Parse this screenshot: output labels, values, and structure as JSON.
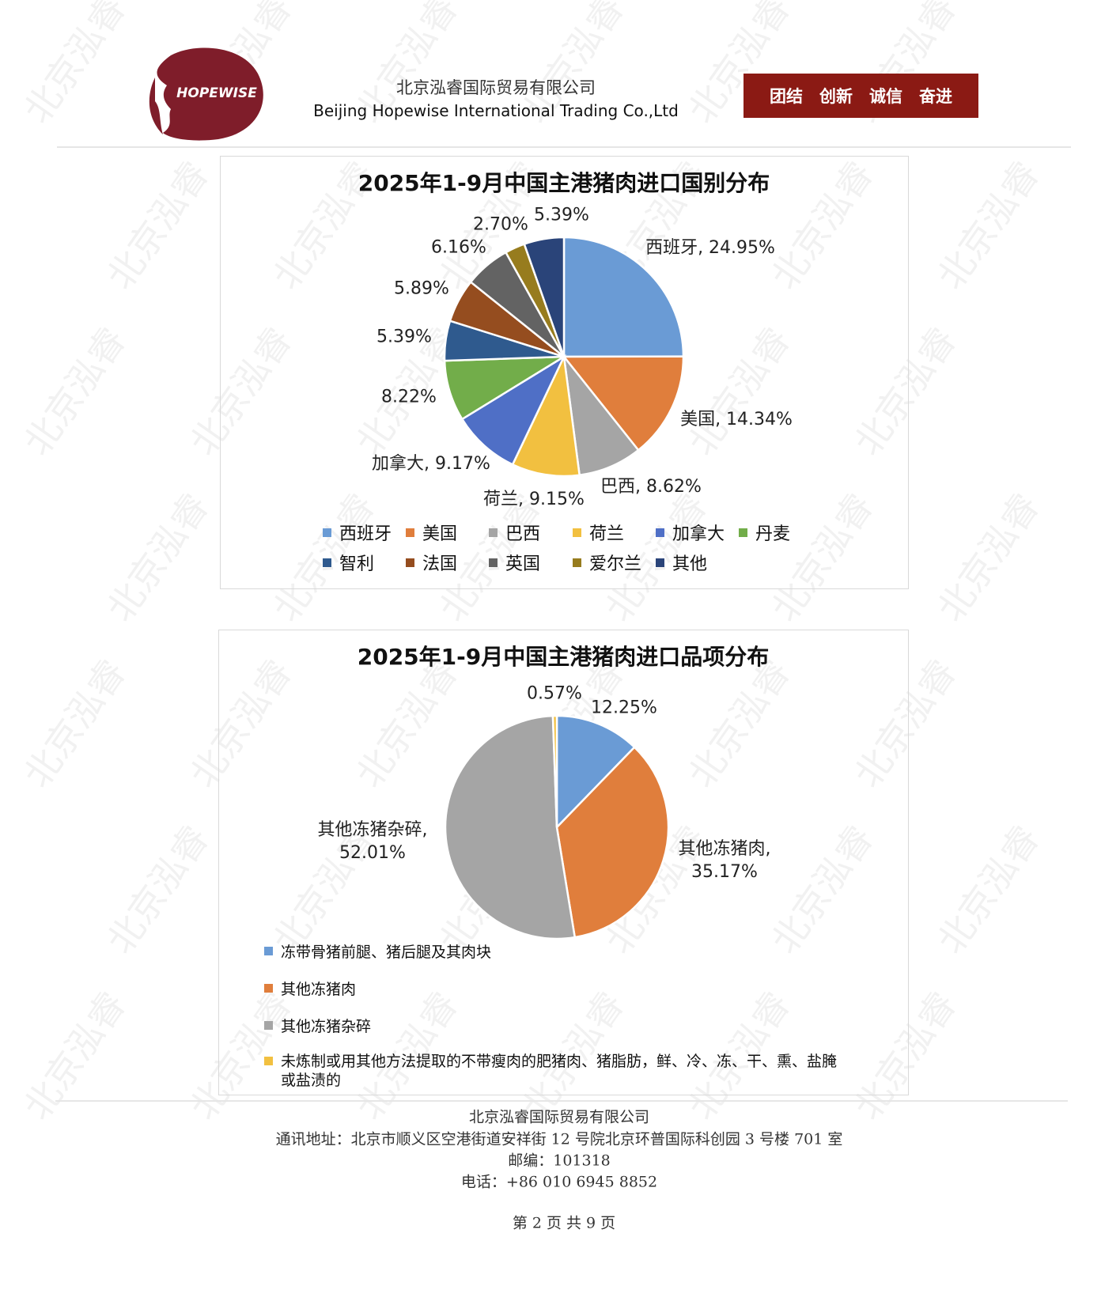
{
  "header": {
    "logo_text": "HOPEWISE",
    "company_cn": "北京泓睿国际贸易有限公司",
    "company_en": "Beijing Hopewise International Trading Co.,Ltd",
    "slogan": "团结　创新　诚信　奋进",
    "brand_color": "#8B1A14",
    "logo_color": "#7F1D2A"
  },
  "watermark": "北京泓睿",
  "chart_data": [
    {
      "type": "pie",
      "title": "2025年1-9月中国主港猪肉进口国别分布",
      "legend_position": "bottom",
      "slices": [
        {
          "name": "西班牙",
          "value": 24.95,
          "label": "西班牙, 24.95%",
          "color": "#6A9BD5"
        },
        {
          "name": "美国",
          "value": 14.34,
          "label": "美国, 14.34%",
          "color": "#E07E3C"
        },
        {
          "name": "巴西",
          "value": 8.62,
          "label": "巴西, 8.62%",
          "color": "#A5A5A5"
        },
        {
          "name": "荷兰",
          "value": 9.15,
          "label": "荷兰, 9.15%",
          "color": "#F2C040"
        },
        {
          "name": "加拿大",
          "value": 9.17,
          "label": "加拿大, 9.17%",
          "color": "#4F6FC6"
        },
        {
          "name": "丹麦",
          "value": 8.22,
          "label": "8.22%",
          "color": "#72AD4A"
        },
        {
          "name": "智利",
          "value": 5.39,
          "label": "5.39%",
          "color": "#2F5A8E"
        },
        {
          "name": "法国",
          "value": 5.89,
          "label": "5.89%",
          "color": "#954D1F"
        },
        {
          "name": "英国",
          "value": 6.16,
          "label": "6.16%",
          "color": "#636363"
        },
        {
          "name": "爱尔兰",
          "value": 2.7,
          "label": "2.70%",
          "color": "#977C1E"
        },
        {
          "name": "其他",
          "value": 5.39,
          "label": "5.39%",
          "color": "#2A4479"
        }
      ]
    },
    {
      "type": "pie",
      "title": "2025年1-9月中国主港猪肉进口品项分布",
      "legend_position": "bottom-left",
      "slices": [
        {
          "name": "冻带骨猪前腿、猪后腿及其肉块",
          "value": 12.25,
          "label": "12.25%",
          "color": "#6A9BD5"
        },
        {
          "name": "其他冻猪肉",
          "value": 35.17,
          "label": "其他冻猪肉, 35.17%",
          "label_l1": "其他冻猪肉,",
          "label_l2": "35.17%",
          "color": "#E07E3C"
        },
        {
          "name": "其他冻猪杂碎",
          "value": 52.01,
          "label": "其他冻猪杂碎, 52.01%",
          "label_l1": "其他冻猪杂碎,",
          "label_l2": "52.01%",
          "color": "#A5A5A5"
        },
        {
          "name": "未炼制或用其他方法提取的不带瘦肉的肥猪肉、猪脂肪，鲜、冷、冻、干、熏、盐腌或盐渍的",
          "name_l1": "未炼制或用其他方法提取的不带瘦肉的肥猪肉、猪脂肪，鲜、冷、冻、干、熏、盐腌",
          "name_l2": "或盐渍的",
          "value": 0.57,
          "label": "0.57%",
          "color": "#F2C040"
        }
      ]
    }
  ],
  "footer": {
    "company": "北京泓睿国际贸易有限公司",
    "address": "通讯地址：北京市顺义区空港街道安祥街 12 号院北京环普国际科创园 3 号楼 701 室",
    "postcode": "邮编：101318",
    "phone": "电话：+86 010 6945 8852",
    "page": "第 2 页 共 9 页"
  }
}
